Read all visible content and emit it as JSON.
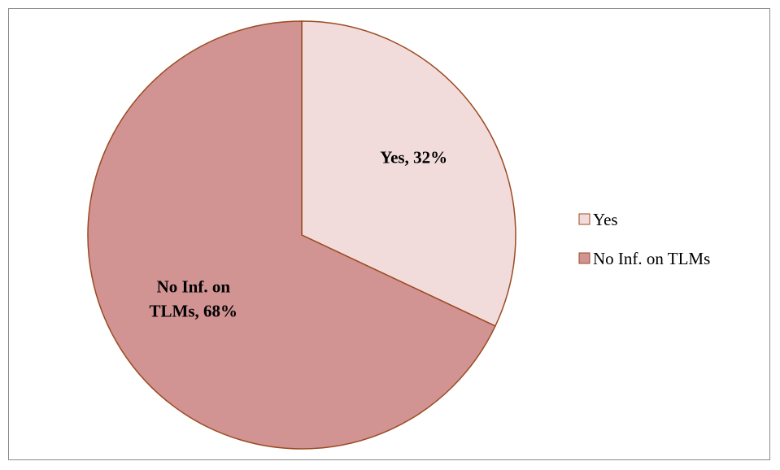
{
  "chart_data": {
    "type": "pie",
    "categories": [
      "Yes",
      "No Inf. on TLMs"
    ],
    "values": [
      32,
      68
    ],
    "unit": "%",
    "data_labels": [
      [
        "Yes, 32%"
      ],
      [
        "No Inf. on",
        "TLMs, 68%"
      ]
    ],
    "colors": [
      "#f2dcdb",
      "#d29393"
    ],
    "stroke_color": "#9b4b22",
    "start": "12 o'clock, clockwise",
    "legend": {
      "position": "right",
      "entries": [
        "Yes",
        "No Inf. on TLMs"
      ]
    }
  }
}
